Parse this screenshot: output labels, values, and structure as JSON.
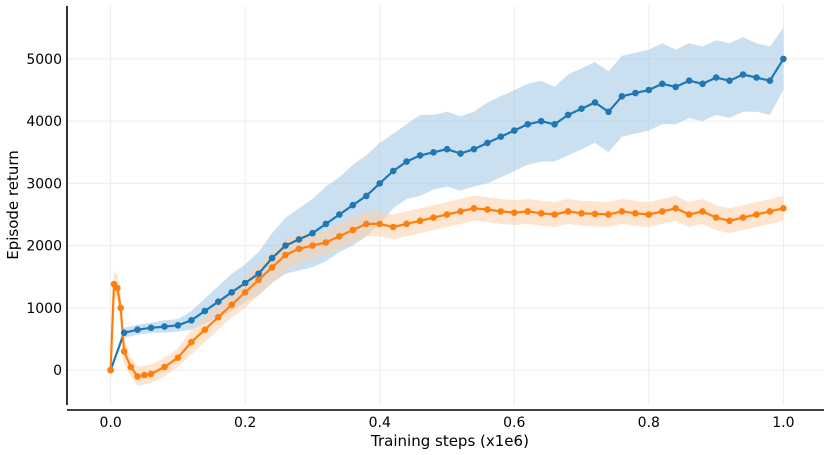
{
  "chart_data": {
    "type": "line",
    "title": "",
    "xlabel": "Training steps (x1e6)",
    "ylabel": "Episode return",
    "xlim": [
      -0.05,
      1.05
    ],
    "ylim": [
      -560,
      5850
    ],
    "xticks": [
      0.0,
      0.2,
      0.4,
      0.6,
      0.8,
      1.0
    ],
    "xtick_labels": [
      "0.0",
      "0.2",
      "0.4",
      "0.6",
      "0.8",
      "1.0"
    ],
    "yticks": [
      0,
      1000,
      2000,
      3000,
      4000,
      5000
    ],
    "ytick_labels": [
      "0",
      "1000",
      "2000",
      "3000",
      "4000",
      "5000"
    ],
    "grid": true,
    "legend": "none",
    "series": [
      {
        "name": "blue run",
        "color": "#1f77b4",
        "shade_color": "#9ec6e6",
        "x": [
          0.0,
          0.02,
          0.04,
          0.06,
          0.08,
          0.1,
          0.12,
          0.14,
          0.16,
          0.18,
          0.2,
          0.22,
          0.24,
          0.26,
          0.28,
          0.3,
          0.32,
          0.34,
          0.36,
          0.38,
          0.4,
          0.42,
          0.44,
          0.46,
          0.48,
          0.5,
          0.52,
          0.54,
          0.56,
          0.58,
          0.6,
          0.62,
          0.64,
          0.66,
          0.68,
          0.7,
          0.72,
          0.74,
          0.76,
          0.78,
          0.8,
          0.82,
          0.84,
          0.86,
          0.88,
          0.9,
          0.92,
          0.94,
          0.96,
          0.98,
          1.0
        ],
        "y": [
          0,
          600,
          650,
          680,
          700,
          720,
          800,
          950,
          1100,
          1250,
          1400,
          1550,
          1800,
          2000,
          2100,
          2200,
          2350,
          2500,
          2650,
          2800,
          3000,
          3200,
          3350,
          3450,
          3500,
          3550,
          3480,
          3550,
          3650,
          3750,
          3850,
          3950,
          4000,
          3950,
          4100,
          4200,
          4300,
          4150,
          4400,
          4450,
          4500,
          4600,
          4550,
          4650,
          4600,
          4700,
          4650,
          4750,
          4700,
          4650,
          5000
        ],
        "band": [
          0,
          80,
          80,
          80,
          100,
          100,
          150,
          200,
          250,
          300,
          300,
          350,
          400,
          450,
          500,
          550,
          600,
          600,
          650,
          650,
          650,
          600,
          600,
          650,
          600,
          600,
          600,
          600,
          650,
          650,
          650,
          650,
          650,
          600,
          650,
          650,
          650,
          650,
          650,
          650,
          650,
          650,
          600,
          600,
          600,
          600,
          600,
          600,
          550,
          550,
          500
        ]
      },
      {
        "name": "orange run",
        "color": "#ff7f0e",
        "shade_color": "#fdcfa7",
        "x": [
          0.0,
          0.005,
          0.01,
          0.015,
          0.02,
          0.03,
          0.04,
          0.05,
          0.06,
          0.08,
          0.1,
          0.12,
          0.14,
          0.16,
          0.18,
          0.2,
          0.22,
          0.24,
          0.26,
          0.28,
          0.3,
          0.32,
          0.34,
          0.36,
          0.38,
          0.4,
          0.42,
          0.44,
          0.46,
          0.48,
          0.5,
          0.52,
          0.54,
          0.56,
          0.58,
          0.6,
          0.62,
          0.64,
          0.66,
          0.68,
          0.7,
          0.72,
          0.74,
          0.76,
          0.78,
          0.8,
          0.82,
          0.84,
          0.86,
          0.88,
          0.9,
          0.92,
          0.94,
          0.96,
          0.98,
          1.0
        ],
        "y": [
          0,
          1380,
          1320,
          1000,
          300,
          50,
          -100,
          -80,
          -60,
          50,
          200,
          450,
          650,
          850,
          1050,
          1250,
          1450,
          1650,
          1850,
          1950,
          2000,
          2050,
          2150,
          2250,
          2350,
          2350,
          2300,
          2350,
          2400,
          2450,
          2500,
          2550,
          2600,
          2580,
          2550,
          2530,
          2550,
          2520,
          2500,
          2550,
          2520,
          2510,
          2500,
          2550,
          2520,
          2500,
          2550,
          2600,
          2500,
          2550,
          2450,
          2400,
          2450,
          2500,
          2550,
          2600
        ],
        "band": [
          0,
          200,
          200,
          200,
          200,
          150,
          150,
          150,
          150,
          150,
          150,
          200,
          200,
          200,
          200,
          250,
          250,
          250,
          250,
          250,
          200,
          200,
          200,
          200,
          200,
          200,
          200,
          200,
          200,
          200,
          200,
          200,
          200,
          200,
          200,
          200,
          200,
          200,
          200,
          200,
          200,
          200,
          200,
          200,
          200,
          200,
          200,
          200,
          200,
          200,
          200,
          200,
          200,
          200,
          200,
          200
        ]
      }
    ]
  }
}
